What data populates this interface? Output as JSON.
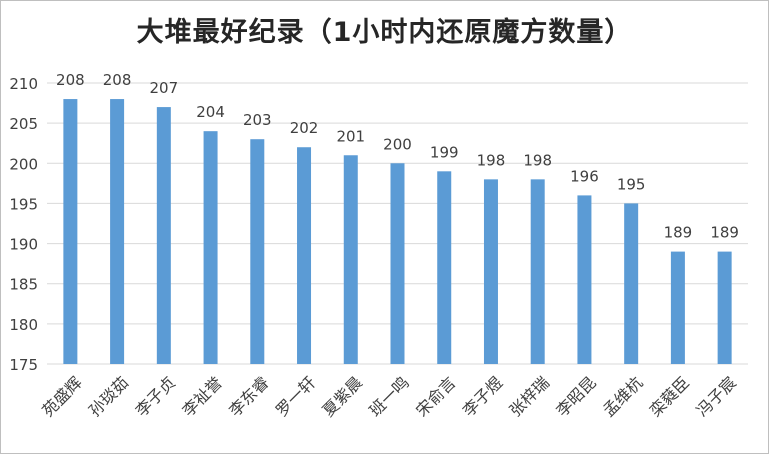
{
  "chart_data": {
    "type": "bar",
    "title": "大堆最好纪录（1小时内还原魔方数量）",
    "categories": [
      "苑盛辉",
      "孙琰茹",
      "李子贞",
      "李祉誉",
      "李东睿",
      "罗一轩",
      "夏紫晨",
      "班一鸣",
      "宋俞言",
      "李子煜",
      "张梓瑞",
      "李昭昆",
      "孟维杭",
      "栾蕤臣",
      "冯子宸"
    ],
    "values": [
      208,
      208,
      207,
      204,
      203,
      202,
      201,
      200,
      199,
      198,
      198,
      196,
      195,
      189,
      189
    ],
    "ylim": [
      175,
      210
    ],
    "yticks": [
      175,
      180,
      185,
      190,
      195,
      200,
      205,
      210
    ],
    "xlabel": "",
    "ylabel": "",
    "grid": true,
    "legend": "none",
    "bar_color": "#5b9bd5",
    "grid_color": "#d9d9d9",
    "label_color": "#404040"
  }
}
